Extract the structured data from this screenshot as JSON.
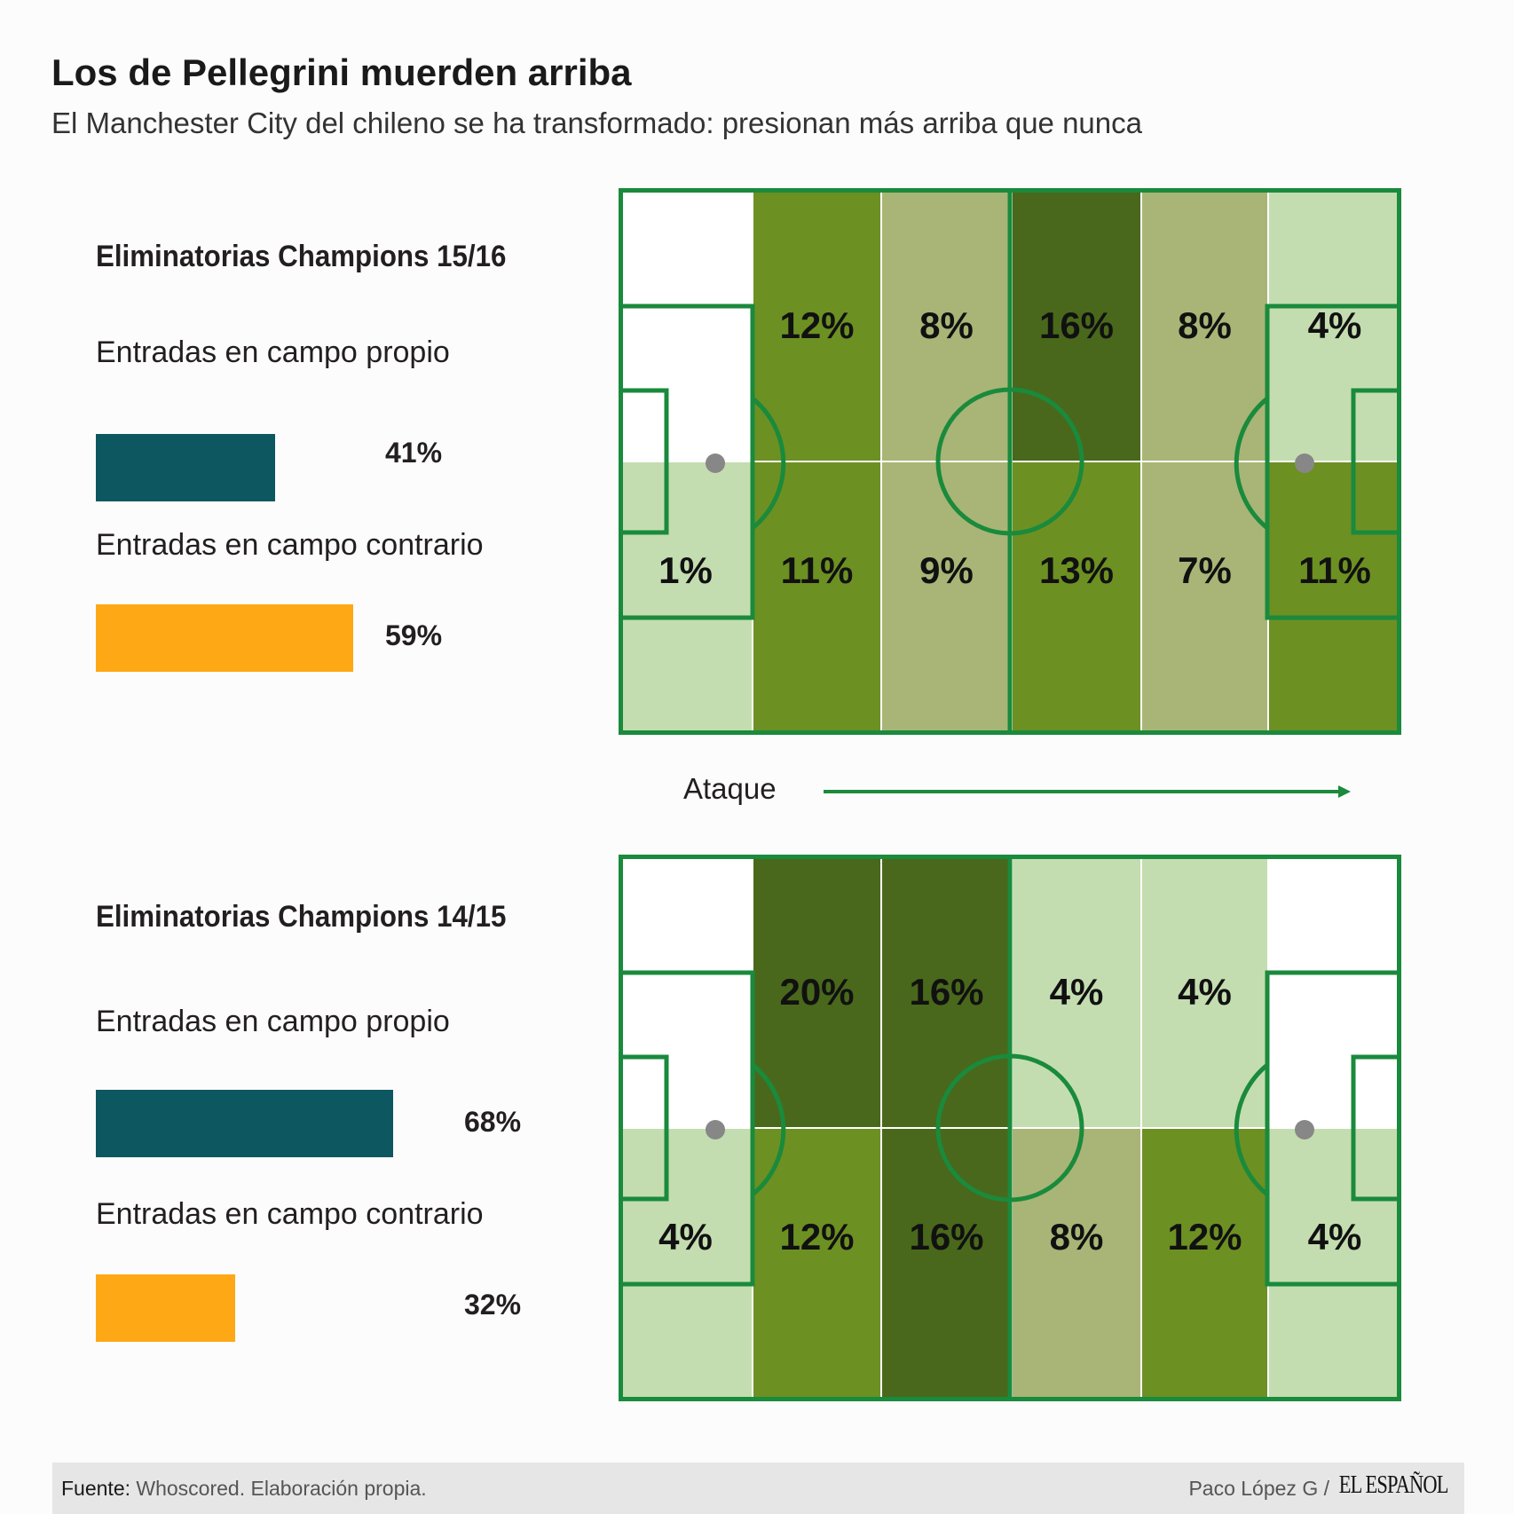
{
  "header": {
    "title": "Los de Pellegrini muerden arriba",
    "subtitle": "El Manchester City del chileno se ha transformado: presionan más arriba que nunca"
  },
  "colors": {
    "own_half": "#0d5760",
    "opp_half": "#ffa815",
    "pitch_line": "#1a8a3c",
    "zone_none": "#ffffff",
    "zone_low": "#c4ddb0",
    "zone_mid": "#a8b576",
    "zone_high": "#6d9023",
    "zone_top": "#49681b",
    "spot": "#878787"
  },
  "sections": [
    {
      "heading": "Eliminatorias Champions 15/16",
      "own_label": "Entradas en campo propio",
      "own_value": 41,
      "own_value_label": "41%",
      "opp_label": "Entradas en campo contrario",
      "opp_value": 59,
      "opp_value_label": "59%",
      "zones_top": [
        null,
        12,
        8,
        16,
        8,
        4
      ],
      "zones_bottom": [
        1,
        11,
        9,
        13,
        7,
        11
      ]
    },
    {
      "heading": "Eliminatorias Champions 14/15",
      "own_label": "Entradas en campo propio",
      "own_value": 68,
      "own_value_label": "68%",
      "opp_label": "Entradas en campo contrario",
      "opp_value": 32,
      "opp_value_label": "32%",
      "zones_top": [
        null,
        20,
        16,
        4,
        4,
        null
      ],
      "zones_bottom": [
        4,
        12,
        16,
        8,
        12,
        4
      ]
    }
  ],
  "direction_label": "Ataque",
  "footer": {
    "source_label": "Fuente:",
    "source_text": "Whoscored. Elaboración propia.",
    "author": "Paco López G /",
    "logo": "EL ESPAÑOL"
  }
}
